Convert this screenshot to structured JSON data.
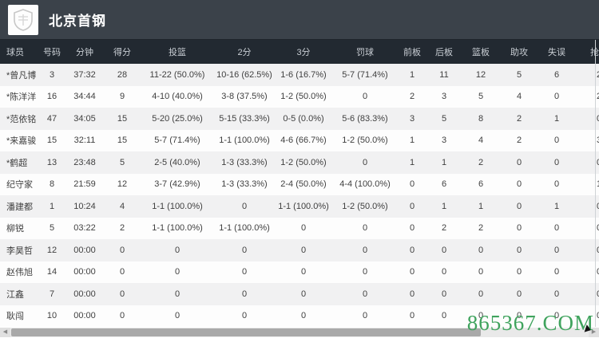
{
  "app": {
    "team_title": "北京首钢",
    "logo": "team-shield-logo"
  },
  "table": {
    "columns": [
      {
        "key": "player",
        "label": "球员"
      },
      {
        "key": "number",
        "label": "号码"
      },
      {
        "key": "minutes",
        "label": "分钟"
      },
      {
        "key": "points",
        "label": "得分"
      },
      {
        "key": "fg",
        "label": "投篮"
      },
      {
        "key": "two",
        "label": "2分"
      },
      {
        "key": "three",
        "label": "3分"
      },
      {
        "key": "ft",
        "label": "罚球"
      },
      {
        "key": "oreb",
        "label": "前板"
      },
      {
        "key": "dreb",
        "label": "后板"
      },
      {
        "key": "reb",
        "label": "篮板"
      },
      {
        "key": "ast",
        "label": "助攻"
      },
      {
        "key": "tov",
        "label": "失误"
      },
      {
        "key": "stl",
        "label": "抢断",
        "clipped": true
      }
    ],
    "rows": [
      [
        "*曾凡博",
        "3",
        "37:32",
        "28",
        "11-22 (50.0%)",
        "10-16 (62.5%)",
        "1-6 (16.7%)",
        "5-7 (71.4%)",
        "1",
        "11",
        "12",
        "5",
        "6",
        "2"
      ],
      [
        "*陈洋洋",
        "16",
        "34:44",
        "9",
        "4-10 (40.0%)",
        "3-8 (37.5%)",
        "1-2 (50.0%)",
        "0",
        "2",
        "3",
        "5",
        "4",
        "0",
        "2"
      ],
      [
        "*范依铭",
        "47",
        "34:05",
        "15",
        "5-20 (25.0%)",
        "5-15 (33.3%)",
        "0-5 (0.0%)",
        "5-6 (83.3%)",
        "3",
        "5",
        "8",
        "2",
        "1",
        "0"
      ],
      [
        "*来嘉骏",
        "15",
        "32:11",
        "15",
        "5-7 (71.4%)",
        "1-1 (100.0%)",
        "4-6 (66.7%)",
        "1-2 (50.0%)",
        "1",
        "3",
        "4",
        "2",
        "0",
        "3"
      ],
      [
        "*鹤超",
        "13",
        "23:48",
        "5",
        "2-5 (40.0%)",
        "1-3 (33.3%)",
        "1-2 (50.0%)",
        "0",
        "1",
        "1",
        "2",
        "0",
        "0",
        "0"
      ],
      [
        "纪守家",
        "8",
        "21:59",
        "12",
        "3-7 (42.9%)",
        "1-3 (33.3%)",
        "2-4 (50.0%)",
        "4-4 (100.0%)",
        "0",
        "6",
        "6",
        "0",
        "0",
        "1"
      ],
      [
        "潘建都",
        "1",
        "10:24",
        "4",
        "1-1 (100.0%)",
        "0",
        "1-1 (100.0%)",
        "1-2 (50.0%)",
        "0",
        "1",
        "1",
        "0",
        "1",
        "0"
      ],
      [
        "柳锐",
        "5",
        "03:22",
        "2",
        "1-1 (100.0%)",
        "1-1 (100.0%)",
        "0",
        "0",
        "0",
        "2",
        "2",
        "0",
        "0",
        "0"
      ],
      [
        "李昊哲",
        "12",
        "00:00",
        "0",
        "0",
        "0",
        "0",
        "0",
        "0",
        "0",
        "0",
        "0",
        "0",
        "0"
      ],
      [
        "赵伟旭",
        "14",
        "00:00",
        "0",
        "0",
        "0",
        "0",
        "0",
        "0",
        "0",
        "0",
        "0",
        "0",
        "0"
      ],
      [
        "江鑫",
        "7",
        "00:00",
        "0",
        "0",
        "0",
        "0",
        "0",
        "0",
        "0",
        "0",
        "0",
        "0",
        "0"
      ],
      [
        "耿闯",
        "10",
        "00:00",
        "0",
        "0",
        "0",
        "0",
        "0",
        "0",
        "0",
        "0",
        "0",
        "0",
        "0"
      ]
    ]
  },
  "scrollbar": {
    "left_arrow": "◀",
    "right_arrow": "▶"
  },
  "watermark": {
    "text": "865367.COM",
    "color": "#3fa35d"
  },
  "colors": {
    "topbar": "#3b424a",
    "table_header_bg": "#222931",
    "row_odd": "#f1f1f2",
    "row_even": "#fdfdfd",
    "cell_text": "#3f3f3f",
    "header_text": "#c9ced4"
  }
}
